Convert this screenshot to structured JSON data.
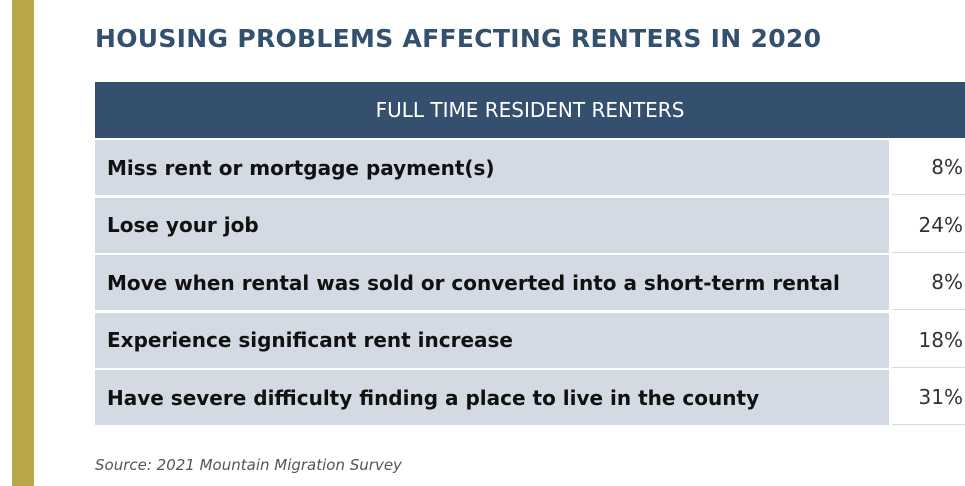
{
  "header": {
    "title": "HOUSING PROBLEMS AFFECTING RENTERS IN 2020"
  },
  "table": {
    "heading": "FULL TIME RESIDENT RENTERS",
    "rows": [
      [
        "Miss rent or mortgage payment(s)",
        "8%"
      ],
      [
        "Lose your job",
        "24%"
      ],
      [
        "Move when rental was sold or converted into a short-term rental",
        "8%"
      ],
      [
        "Experience significant rent increase",
        "18%"
      ],
      [
        "Have severe difficulty finding a place to live in the county",
        "31%"
      ]
    ]
  },
  "footer": {
    "source": "Source: 2021 Mountain Migration Survey"
  }
}
